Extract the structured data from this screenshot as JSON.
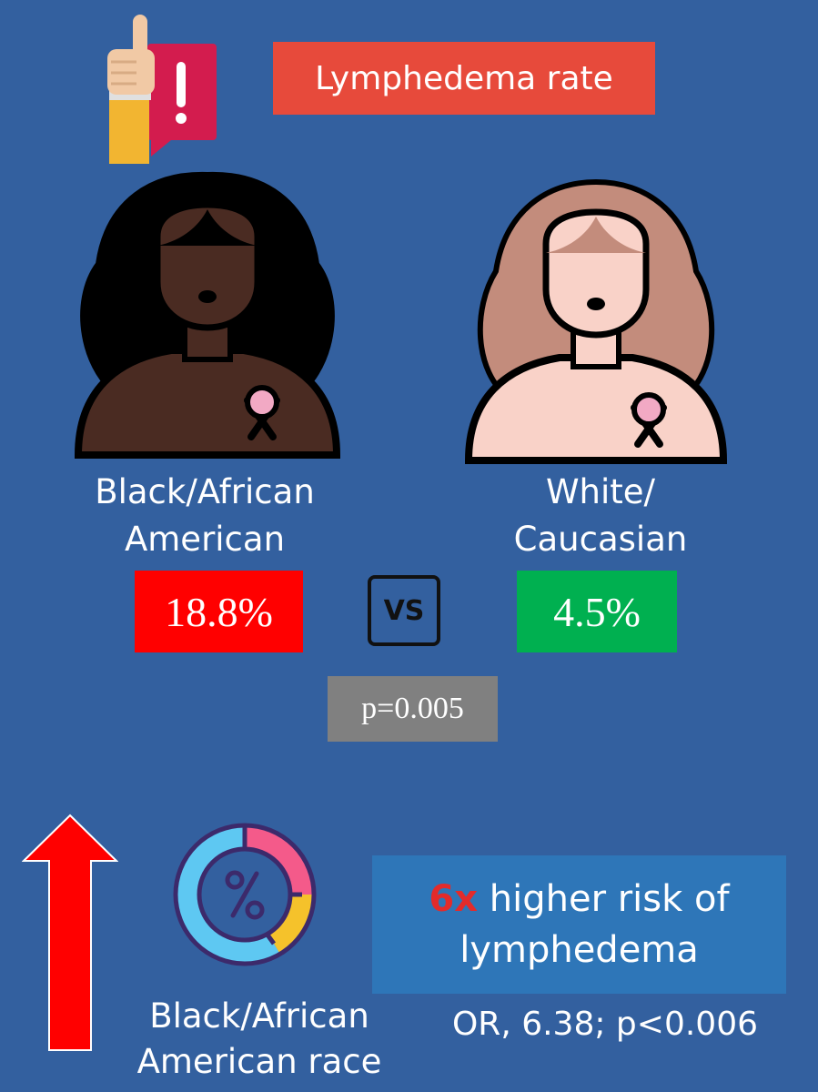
{
  "header": {
    "title": "Lymphedema rate"
  },
  "groups": [
    {
      "label_line1": "Black/African",
      "label_line2": "American",
      "rate": "18.8%",
      "rate_color": "#ff0000"
    },
    {
      "label_line1": "White/",
      "label_line2": "Caucasian",
      "rate": "4.5%",
      "rate_color": "#00b050"
    }
  ],
  "comparison": {
    "vs": "VS",
    "p_value": "p=0.005"
  },
  "risk": {
    "multiplier": "6x",
    "text_line1": " higher risk of",
    "text_line2": "lymphedema",
    "odds": "OR, 6.38; p<0.006",
    "race_line1": "Black/African",
    "race_line2": "American race"
  },
  "icons": {
    "alert": "hand-alert-icon",
    "woman_black": "woman-black-ribbon-icon",
    "woman_white": "woman-white-ribbon-icon",
    "percent": "percent-donut-icon",
    "up_arrow": "up-arrow-icon"
  },
  "colors": {
    "background": "#33609f",
    "title": "#e74a3b",
    "risk_box": "#2e76b8",
    "p_box": "#808080",
    "arrow": "#ff0000"
  }
}
